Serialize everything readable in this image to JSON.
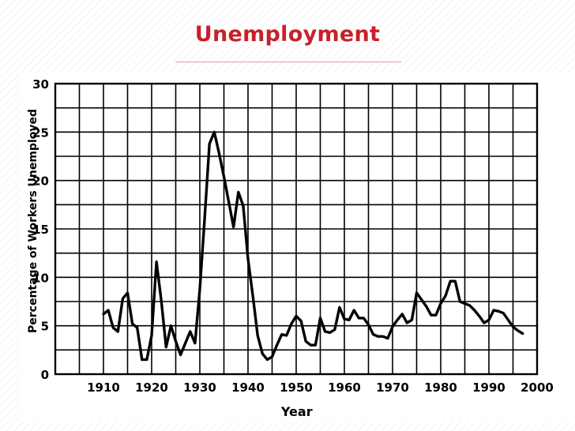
{
  "slide": {
    "title": "Unemployment"
  },
  "chart_data": {
    "type": "line",
    "xlabel": "Year",
    "ylabel": "Percentage of Workers Unemployed",
    "xlim": [
      1900,
      2000
    ],
    "ylim": [
      0,
      30
    ],
    "x_ticks": [
      1910,
      1920,
      1930,
      1940,
      1950,
      1960,
      1970,
      1980,
      1990,
      2000
    ],
    "y_ticks": [
      0,
      5,
      10,
      15,
      20,
      25,
      30
    ],
    "grid": true,
    "line_color": "#000000",
    "series": [
      {
        "x": [
          1910,
          1911,
          1912,
          1913,
          1914,
          1915,
          1916,
          1917,
          1918,
          1919,
          1920,
          1921,
          1922,
          1923,
          1924,
          1925,
          1926,
          1927,
          1928,
          1929,
          1930,
          1931,
          1932,
          1933,
          1934,
          1935,
          1936,
          1937,
          1938,
          1939,
          1940,
          1941,
          1942,
          1943,
          1944,
          1945,
          1946,
          1947,
          1948,
          1949,
          1950,
          1951,
          1952,
          1953,
          1954,
          1955,
          1956,
          1957,
          1958,
          1959,
          1960,
          1961,
          1962,
          1963,
          1964,
          1965,
          1966,
          1967,
          1968,
          1969,
          1970,
          1971,
          1972,
          1973,
          1974,
          1975,
          1976,
          1977,
          1978,
          1979,
          1980,
          1981,
          1982,
          1983,
          1984,
          1985,
          1986,
          1987,
          1988,
          1989,
          1990,
          1991,
          1992,
          1993,
          1994,
          1995,
          1996,
          1997
        ],
        "values": [
          6.2,
          6.6,
          4.8,
          4.4,
          7.8,
          8.4,
          5.2,
          4.8,
          1.5,
          1.5,
          4.0,
          11.6,
          7.6,
          2.8,
          5.0,
          3.4,
          2.0,
          3.2,
          4.4,
          3.2,
          8.8,
          16.1,
          23.8,
          25.0,
          22.8,
          20.4,
          17.8,
          15.2,
          18.8,
          17.4,
          11.9,
          8.1,
          4.0,
          2.1,
          1.5,
          1.8,
          3.0,
          4.1,
          4.0,
          5.2,
          6.0,
          5.5,
          3.4,
          3.0,
          3.0,
          5.8,
          4.4,
          4.3,
          4.6,
          6.9,
          5.7,
          5.6,
          6.6,
          5.8,
          5.8,
          5.1,
          4.1,
          3.9,
          3.9,
          3.7,
          4.9,
          5.6,
          6.2,
          5.3,
          5.6,
          8.4,
          7.7,
          7.0,
          6.1,
          6.1,
          7.3,
          8.1,
          9.6,
          9.6,
          7.5,
          7.3,
          7.1,
          6.6,
          6.0,
          5.3,
          5.6,
          6.6,
          6.5,
          6.3,
          5.6,
          4.9,
          4.5,
          4.2
        ]
      }
    ]
  }
}
